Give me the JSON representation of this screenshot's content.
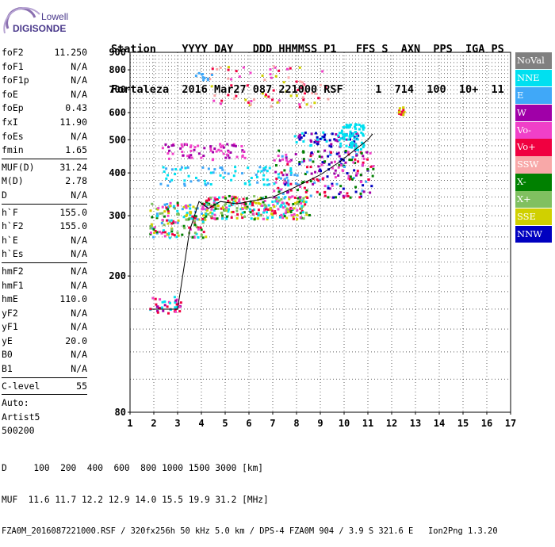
{
  "logo": {
    "line1": "Lowell",
    "line2": "DIGISONDE"
  },
  "header": {
    "labels": "Station    YYYY DAY   DDD HHMMSS P1   FFS S  AXN  PPS  IGA PS",
    "values": "Fortaleza  2016 Mar27 087 221000 RSF     1  714  100  10+  11"
  },
  "params": {
    "group1": [
      {
        "name": "foF2",
        "value": "11.250"
      },
      {
        "name": "foF1",
        "value": "N/A"
      },
      {
        "name": "foF1p",
        "value": "N/A"
      },
      {
        "name": "foE",
        "value": "N/A"
      },
      {
        "name": "foEp",
        "value": "0.43"
      },
      {
        "name": "fxI",
        "value": "11.90"
      },
      {
        "name": "foEs",
        "value": "N/A"
      },
      {
        "name": "fmin",
        "value": "1.65"
      }
    ],
    "group2": [
      {
        "name": "MUF(D)",
        "value": "31.24"
      },
      {
        "name": "M(D)",
        "value": "2.78"
      },
      {
        "name": "D",
        "value": "N/A"
      }
    ],
    "group3": [
      {
        "name": "h`F",
        "value": "155.0"
      },
      {
        "name": "h`F2",
        "value": "155.0"
      },
      {
        "name": "h`E",
        "value": "N/A"
      },
      {
        "name": "h`Es",
        "value": "N/A"
      }
    ],
    "group4": [
      {
        "name": "hmF2",
        "value": "N/A"
      },
      {
        "name": "hmF1",
        "value": "N/A"
      },
      {
        "name": "hmE",
        "value": "110.0"
      },
      {
        "name": "yF2",
        "value": "N/A"
      },
      {
        "name": "yF1",
        "value": "N/A"
      },
      {
        "name": "yE",
        "value": "20.0"
      },
      {
        "name": "B0",
        "value": "N/A"
      },
      {
        "name": "B1",
        "value": "N/A"
      }
    ],
    "clevel": {
      "name": "C-level",
      "value": "55"
    },
    "auto": [
      "Auto:",
      "Artist5",
      "500200"
    ]
  },
  "legend": [
    {
      "label": "NoVal",
      "color": "#808080"
    },
    {
      "label": "NNE",
      "color": "#00e0f0"
    },
    {
      "label": "E",
      "color": "#40a8f8"
    },
    {
      "label": "W",
      "color": "#a000a8"
    },
    {
      "label": "Vo-",
      "color": "#f040c8"
    },
    {
      "label": "Vo+",
      "color": "#f00040"
    },
    {
      "label": "SSW",
      "color": "#f8a8a8"
    },
    {
      "label": "X-",
      "color": "#008000"
    },
    {
      "label": "X+",
      "color": "#80c060"
    },
    {
      "label": "SSE",
      "color": "#d0d000"
    },
    {
      "label": "NNW",
      "color": "#0000c0"
    }
  ],
  "footer": {
    "line1": "D     100  200  400  600  800 1000 1500 3000 [km]",
    "line2": "MUF  11.6 11.7 12.2 12.9 14.0 15.5 19.9 31.2 [MHz]",
    "line3": "FZA0M_2016087221000.RSF / 320fx256h 50 kHz 5.0 km / DPS-4 FZA0M 904 / 3.9 S 321.6 E   Ion2Png 1.3.20"
  },
  "chart_data": {
    "type": "scatter",
    "xlim": [
      1,
      17
    ],
    "ylim": [
      80,
      900
    ],
    "x_ticks": [
      "1",
      "2",
      "3",
      "4",
      "5",
      "6",
      "7",
      "8",
      "9",
      "10",
      "11",
      "12",
      "13",
      "14",
      "15",
      "16",
      "17"
    ],
    "y_ticks": [
      {
        "v": 80,
        "label": "80"
      },
      {
        "v": 200,
        "label": "200"
      },
      {
        "v": 300,
        "label": "300"
      },
      {
        "v": 400,
        "label": "400"
      },
      {
        "v": 500,
        "label": "500"
      },
      {
        "v": 600,
        "label": "600"
      },
      {
        "v": 700,
        "label": "700"
      },
      {
        "v": 800,
        "label": "800"
      },
      {
        "v": 900,
        "label": "900"
      }
    ],
    "y_scale": "log",
    "grid": true,
    "trace": [
      [
        1.9,
        160
      ],
      [
        2.5,
        160
      ],
      [
        3.0,
        160
      ],
      [
        3.5,
        270
      ],
      [
        3.9,
        330
      ],
      [
        4.3,
        315
      ],
      [
        4.8,
        330
      ],
      [
        5.5,
        325
      ],
      [
        6.0,
        330
      ],
      [
        7.0,
        340
      ],
      [
        8.0,
        365
      ],
      [
        9.0,
        395
      ],
      [
        9.8,
        430
      ],
      [
        10.5,
        470
      ],
      [
        11.0,
        500
      ],
      [
        11.2,
        520
      ]
    ],
    "clusters": [
      {
        "x": [
          1.8,
          3.1
        ],
        "y": [
          155,
          175
        ],
        "n": 40,
        "colors": [
          "#f040c8",
          "#00e0f0",
          "#f00040",
          "#a000a8"
        ]
      },
      {
        "x": [
          1.8,
          4.2
        ],
        "y": [
          260,
          330
        ],
        "n": 160,
        "colors": [
          "#f00040",
          "#f040c8",
          "#d0d000",
          "#80c060",
          "#00e0f0",
          "#40a8f8",
          "#008000"
        ]
      },
      {
        "x": [
          4.0,
          8.5
        ],
        "y": [
          295,
          345
        ],
        "n": 260,
        "colors": [
          "#f00040",
          "#f040c8",
          "#80c060",
          "#d0d000",
          "#008000",
          "#00e0f0"
        ]
      },
      {
        "x": [
          7.0,
          11.2
        ],
        "y": [
          340,
          470
        ],
        "n": 220,
        "colors": [
          "#f00040",
          "#a000a8",
          "#f040c8",
          "#0000c0",
          "#008000",
          "#40a8f8"
        ]
      },
      {
        "x": [
          2.2,
          8.0
        ],
        "y": [
          370,
          420
        ],
        "n": 80,
        "colors": [
          "#40a8f8",
          "#00e0f0"
        ]
      },
      {
        "x": [
          2.3,
          5.8
        ],
        "y": [
          440,
          490
        ],
        "n": 70,
        "colors": [
          "#a000a8",
          "#f040c8"
        ]
      },
      {
        "x": [
          7.8,
          10.6
        ],
        "y": [
          480,
          530
        ],
        "n": 70,
        "colors": [
          "#0000c0",
          "#a000a8",
          "#00e0f0"
        ]
      },
      {
        "x": [
          9.8,
          10.8
        ],
        "y": [
          470,
          560
        ],
        "n": 70,
        "colors": [
          "#00e0f0"
        ]
      },
      {
        "x": [
          4.3,
          9.3
        ],
        "y": [
          620,
          830
        ],
        "n": 80,
        "colors": [
          "#f8a8a8",
          "#d0d000",
          "#f040c8",
          "#f00040"
        ]
      },
      {
        "x": [
          12.2,
          12.6
        ],
        "y": [
          595,
          630
        ],
        "n": 15,
        "colors": [
          "#d0d000",
          "#f00040"
        ]
      },
      {
        "x": [
          3.7,
          4.5
        ],
        "y": [
          740,
          790
        ],
        "n": 10,
        "colors": [
          "#40a8f8"
        ]
      }
    ]
  }
}
